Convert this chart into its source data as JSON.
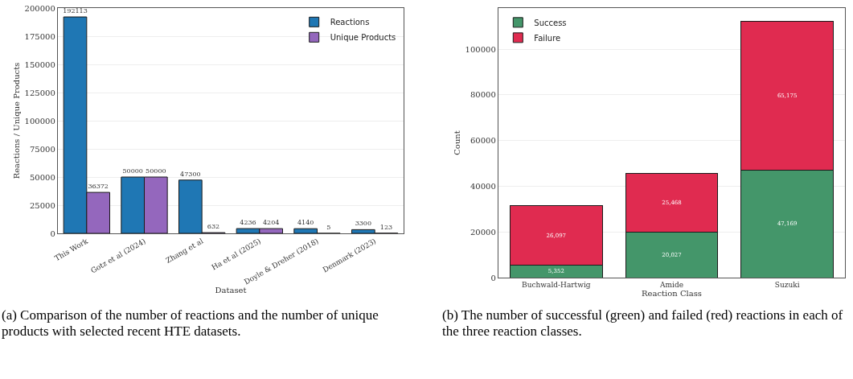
{
  "chart_data": [
    {
      "type": "bar",
      "xlabel": "Dataset",
      "ylabel": "Reactions / Unique Products",
      "categories": [
        "This Work",
        "Gotz et al (2024)",
        "Zhang et al",
        "Ha et al (2025)",
        "Doyle & Dreher (2018)",
        "Denmark (2023)"
      ],
      "series": [
        {
          "name": "Reactions",
          "color": "#1f77b4",
          "values": [
            192113,
            50000,
            47300,
            4236,
            4140,
            3300
          ]
        },
        {
          "name": "Unique Products",
          "color": "#9467bd",
          "values": [
            36372,
            50000,
            632,
            4204,
            5,
            123
          ]
        }
      ],
      "ylim": [
        0,
        200000
      ],
      "yticks": [
        0,
        25000,
        50000,
        75000,
        100000,
        125000,
        150000,
        175000,
        200000
      ],
      "grid": "y",
      "legend": "top right",
      "data_labels": true,
      "annotations": [
        "(a) Comparison of the number of reactions and the number of unique products with selected recent HTE datasets."
      ]
    },
    {
      "type": "bar",
      "stacked": true,
      "xlabel": "Reaction Class",
      "ylabel": "Count",
      "categories": [
        "Buchwald-Hartwig",
        "Amide",
        "Suzuki"
      ],
      "series": [
        {
          "name": "Success",
          "color": "#44966a",
          "values": [
            5352,
            20027,
            47169
          ],
          "value_labels": [
            "5,352",
            "20,027",
            "47,169"
          ]
        },
        {
          "name": "Failure",
          "color": "#e02b50",
          "values": [
            26097,
            25468,
            65175
          ],
          "value_labels": [
            "26,097",
            "25,468",
            "65,175"
          ]
        }
      ],
      "ylim": [
        0,
        118000
      ],
      "yticks": [
        0,
        20000,
        40000,
        60000,
        80000,
        100000
      ],
      "grid": "y",
      "legend": "top left",
      "annotations": [
        "(b) The number of successful (green) and failed (red) reactions in each of the three reaction classes."
      ]
    }
  ]
}
